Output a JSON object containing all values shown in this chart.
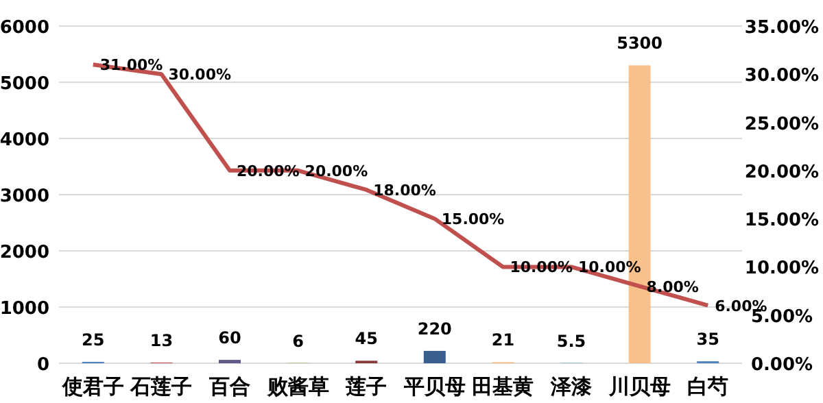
{
  "chart_data": {
    "type": "bar",
    "categories": [
      "使君子",
      "石莲子",
      "百合",
      "败酱草",
      "莲子",
      "平贝母",
      "田基黄",
      "泽漆",
      "川贝母",
      "白芍"
    ],
    "series": [
      {
        "colors": [
          "#4f81bd",
          "#c0504d",
          "#5f5a8a",
          "#9bbb59",
          "#8b3a3a",
          "#3a5f8f",
          "#f8c08a",
          "#4bacc6",
          "#f8c08a",
          "#4f81bd"
        ],
        "values": [
          25,
          13,
          60,
          6,
          45,
          220,
          21,
          5.5,
          5300,
          35
        ],
        "value_labels": [
          "25",
          "13",
          "60",
          "6",
          "45",
          "220",
          "21",
          "5.5",
          "5300",
          "35"
        ]
      },
      {
        "type": "line",
        "axis": "y2",
        "color": "#c0504d",
        "values": [
          31,
          30,
          20,
          20,
          18,
          15,
          10,
          10,
          8,
          6
        ],
        "value_labels": [
          "31.00%",
          "30.00%",
          "20.00%",
          "20.00%",
          "18.00%",
          "15.00%",
          "10.00%",
          "10.00%",
          "8.00%",
          "6.00%"
        ]
      }
    ],
    "ylim": [
      0,
      6000
    ],
    "yticks": [
      0,
      1000,
      2000,
      3000,
      4000,
      5000,
      6000
    ],
    "y2lim": [
      0,
      35
    ],
    "y2ticks": [
      {
        "value": 0,
        "label": "0.00%"
      },
      {
        "value": 5,
        "label": "5.00%"
      },
      {
        "value": 10,
        "label": "10.00%"
      },
      {
        "value": 15,
        "label": "15.00%"
      },
      {
        "value": 20,
        "label": "20.00%"
      },
      {
        "value": 25,
        "label": "25.00%"
      },
      {
        "value": 30,
        "label": "30.00%"
      },
      {
        "value": 35,
        "label": "35.00%"
      }
    ],
    "grid": "y"
  }
}
